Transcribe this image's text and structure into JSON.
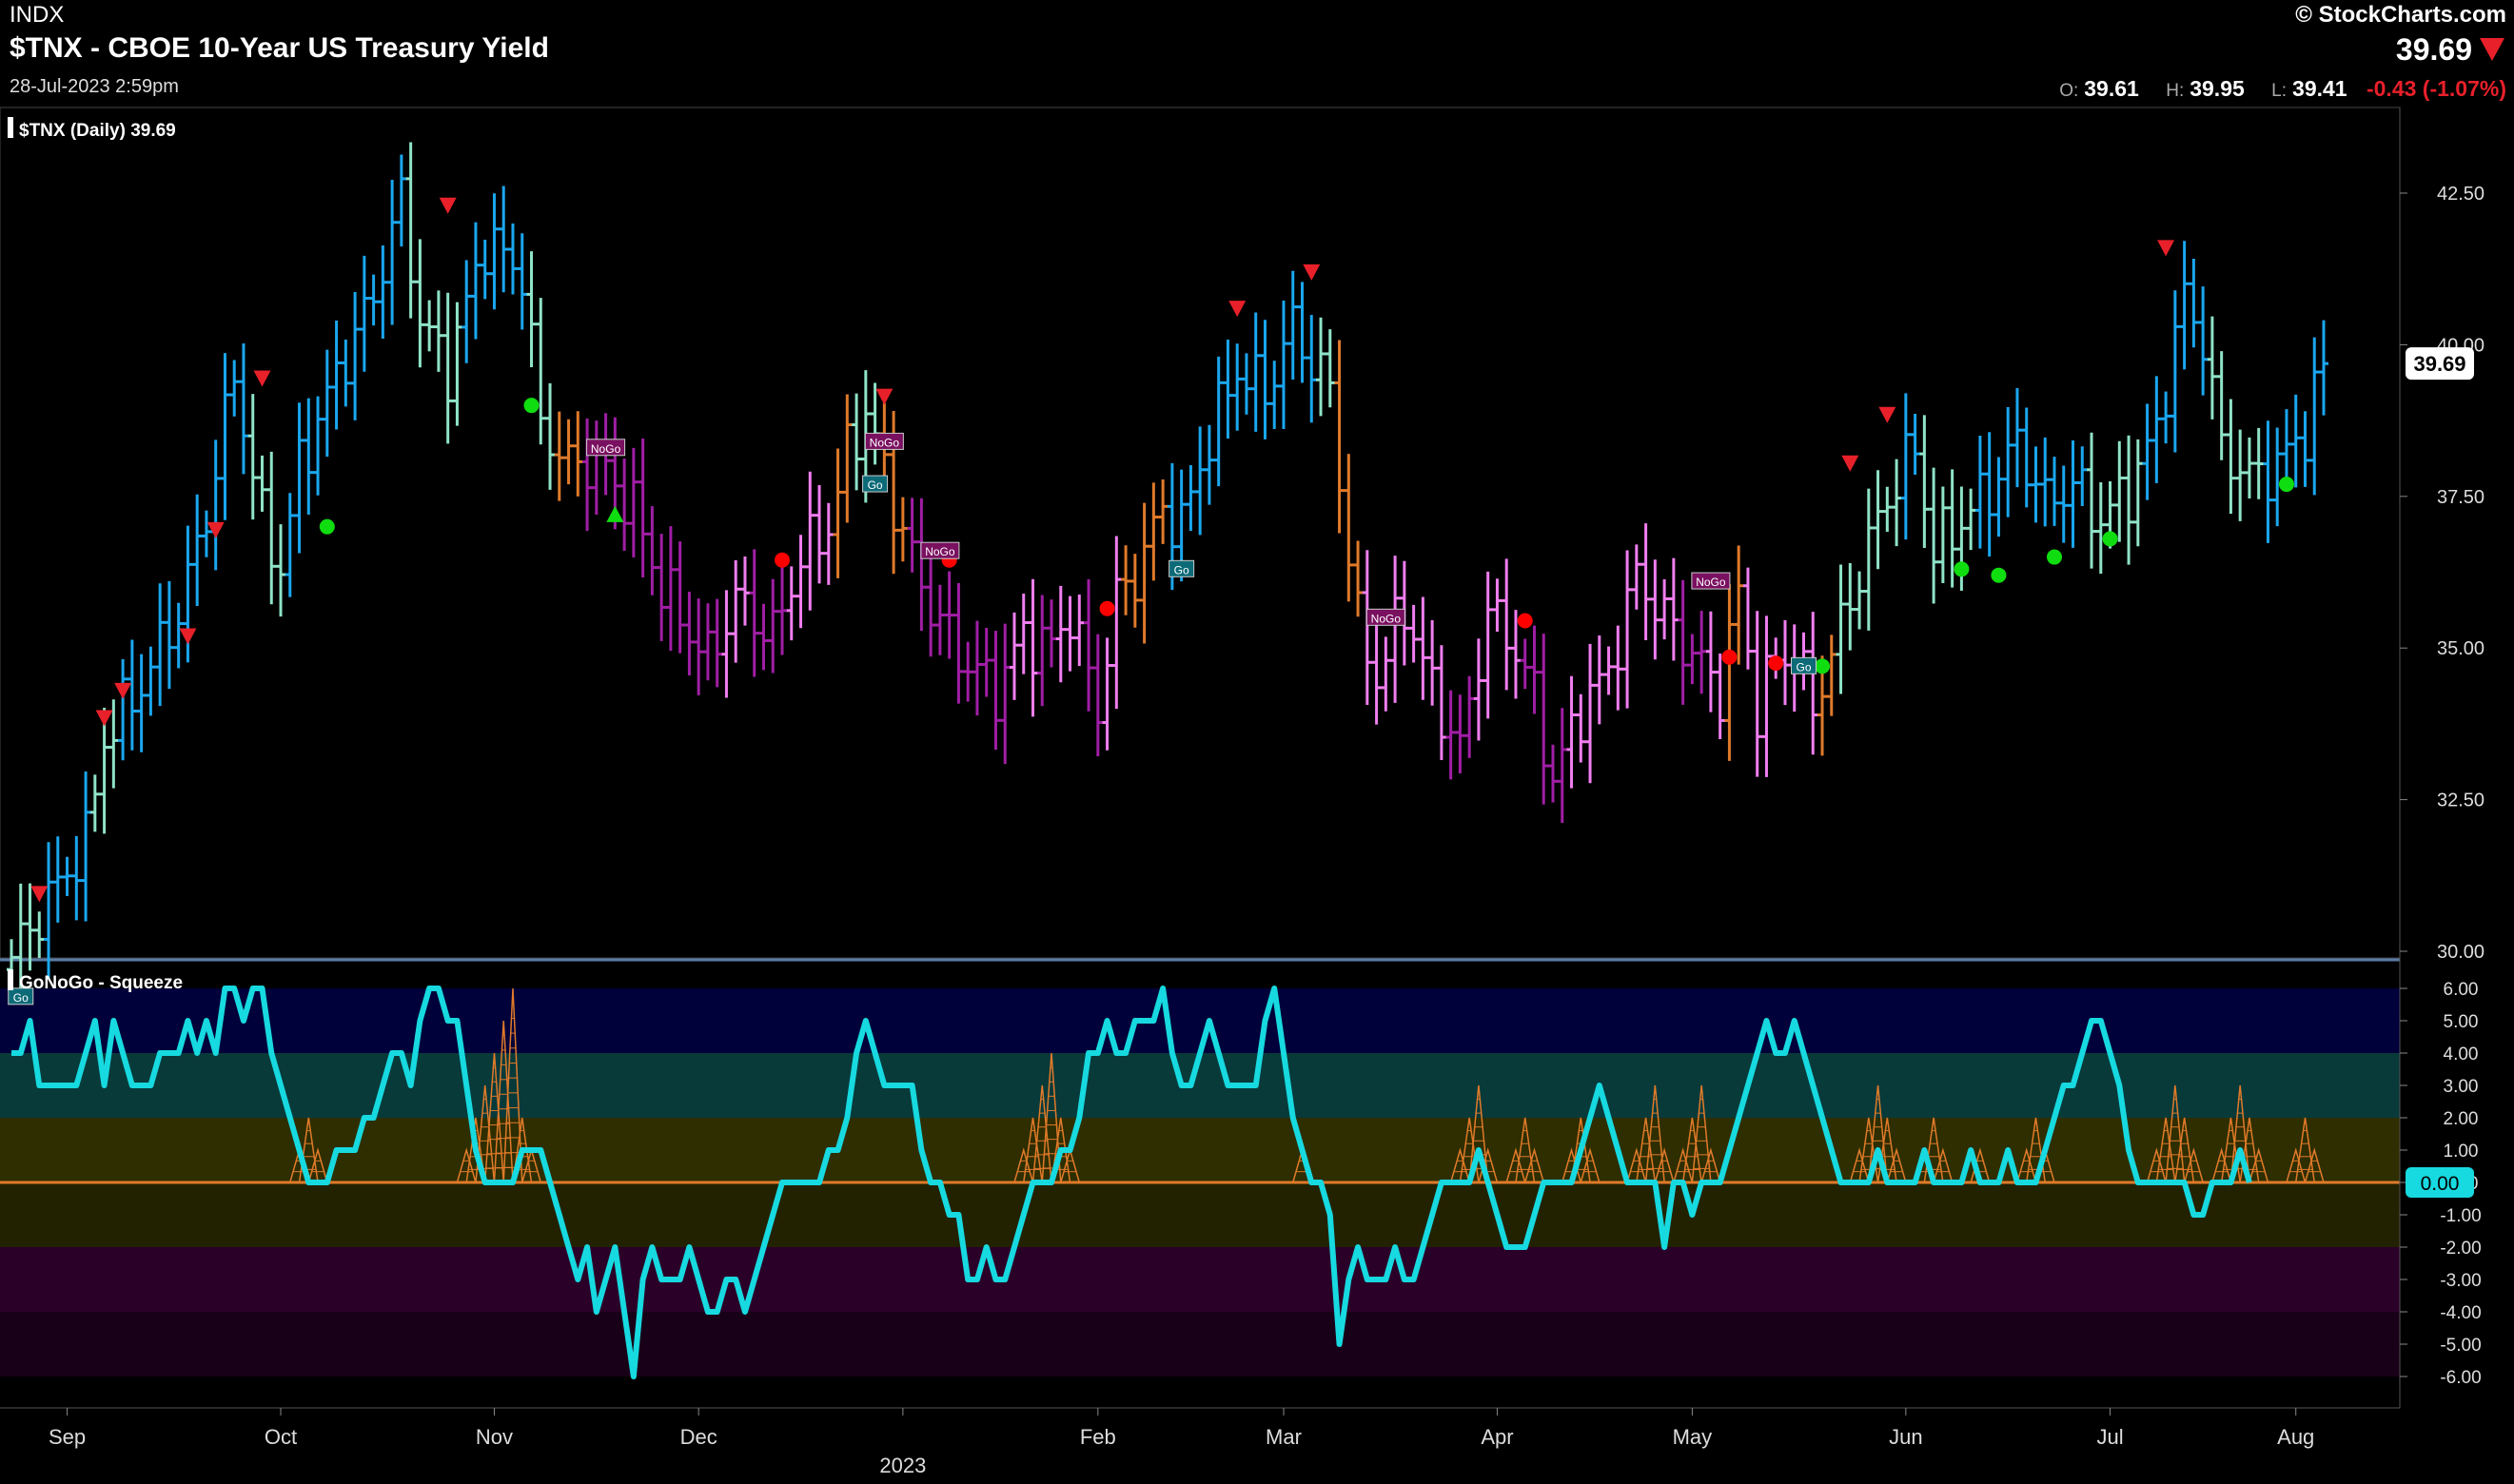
{
  "header": {
    "exchange": "INDX",
    "title": "$TNX - CBOE 10-Year US Treasury Yield",
    "date": "28-Jul-2023 2:59pm",
    "logo": "© StockCharts.com",
    "last": "39.69",
    "direction_icon": "down-triangle-icon",
    "open_label": "O:",
    "open": "39.61",
    "high_label": "H:",
    "high": "39.95",
    "low_label": "L:",
    "low": "39.41",
    "change": "-0.43 (-1.07%)"
  },
  "colors": {
    "strong_go": "#1aa7ef",
    "weak_go": "#8fe3c8",
    "weak_nogo": "#f07ef0",
    "strong_nogo": "#a01ea5",
    "amber": "#e07a2a",
    "oscillator": "#17d9e0",
    "squeeze": "#e07a2a",
    "down_arrow": "#e8202a",
    "nogo_dot": "#ff0000",
    "go_dot": "#10dd10"
  },
  "chart_data": [
    {
      "type": "ohlc",
      "title": "$TNX (Daily) 39.69",
      "ylim": [
        28.4,
        43.4
      ],
      "yticks": [
        42.5,
        40.0,
        37.5,
        35.0,
        32.5,
        30.0
      ],
      "ytick_labels": [
        "42.50",
        "40.00",
        "37.50",
        "35.00",
        "32.50",
        "30.00"
      ],
      "last_value": "39.69",
      "x_months": [
        "Sep",
        "Oct",
        "Nov",
        "Dec",
        "2023",
        "Feb",
        "Mar",
        "Apr",
        "May",
        "Jun",
        "Jul",
        "Aug"
      ],
      "anchors": [
        {
          "t": 0,
          "v": 29.9,
          "c": "weak_go"
        },
        {
          "t": 8,
          "v": 31.8,
          "c": "strong_go"
        },
        {
          "t": 10,
          "v": 33.5,
          "c": "weak_go"
        },
        {
          "t": 14,
          "v": 34.4,
          "c": "strong_go"
        },
        {
          "t": 18,
          "v": 35.6,
          "c": "strong_go"
        },
        {
          "t": 21,
          "v": 37.2,
          "c": "strong_go"
        },
        {
          "t": 24,
          "v": 39.5,
          "c": "strong_go"
        },
        {
          "t": 27,
          "v": 37.1,
          "c": "weak_go"
        },
        {
          "t": 29,
          "v": 36.3,
          "c": "weak_go"
        },
        {
          "t": 31,
          "v": 38.0,
          "c": "strong_go"
        },
        {
          "t": 35,
          "v": 39.5,
          "c": "strong_go"
        },
        {
          "t": 39,
          "v": 40.8,
          "c": "strong_go"
        },
        {
          "t": 42,
          "v": 42.4,
          "c": "strong_go"
        },
        {
          "t": 44,
          "v": 40.4,
          "c": "weak_go"
        },
        {
          "t": 47,
          "v": 39.6,
          "c": "weak_go"
        },
        {
          "t": 51,
          "v": 41.7,
          "c": "strong_go"
        },
        {
          "t": 55,
          "v": 41.2,
          "c": "strong_go"
        },
        {
          "t": 57,
          "v": 38.7,
          "c": "weak_go"
        },
        {
          "t": 60,
          "v": 38.0,
          "c": "amber"
        },
        {
          "t": 63,
          "v": 38.1,
          "c": "strong_nogo"
        },
        {
          "t": 67,
          "v": 37.3,
          "c": "strong_nogo"
        },
        {
          "t": 70,
          "v": 36.0,
          "c": "strong_nogo"
        },
        {
          "t": 75,
          "v": 34.8,
          "c": "strong_nogo"
        },
        {
          "t": 78,
          "v": 35.8,
          "c": "weak_nogo"
        },
        {
          "t": 82,
          "v": 35.2,
          "c": "strong_nogo"
        },
        {
          "t": 85,
          "v": 36.5,
          "c": "weak_nogo"
        },
        {
          "t": 88,
          "v": 37.0,
          "c": "weak_nogo"
        },
        {
          "t": 90,
          "v": 38.2,
          "c": "amber"
        },
        {
          "t": 92,
          "v": 38.9,
          "c": "weak_go"
        },
        {
          "t": 95,
          "v": 37.4,
          "c": "amber"
        },
        {
          "t": 98,
          "v": 36.0,
          "c": "strong_nogo"
        },
        {
          "t": 102,
          "v": 34.9,
          "c": "strong_nogo"
        },
        {
          "t": 106,
          "v": 34.3,
          "c": "strong_nogo"
        },
        {
          "t": 109,
          "v": 35.2,
          "c": "weak_nogo"
        },
        {
          "t": 112,
          "v": 35.0,
          "c": "strong_nogo"
        },
        {
          "t": 114,
          "v": 35.6,
          "c": "weak_nogo"
        },
        {
          "t": 117,
          "v": 34.0,
          "c": "strong_nogo"
        },
        {
          "t": 119,
          "v": 35.8,
          "c": "weak_nogo"
        },
        {
          "t": 121,
          "v": 36.2,
          "c": "amber"
        },
        {
          "t": 124,
          "v": 37.3,
          "c": "amber"
        },
        {
          "t": 126,
          "v": 37.0,
          "c": "strong_go"
        },
        {
          "t": 129,
          "v": 38.5,
          "c": "strong_go"
        },
        {
          "t": 132,
          "v": 39.6,
          "c": "strong_go"
        },
        {
          "t": 135,
          "v": 39.2,
          "c": "strong_go"
        },
        {
          "t": 138,
          "v": 40.3,
          "c": "strong_go"
        },
        {
          "t": 140,
          "v": 39.7,
          "c": "strong_go"
        },
        {
          "t": 142,
          "v": 39.3,
          "c": "weak_go"
        },
        {
          "t": 143,
          "v": 37.8,
          "c": "amber"
        },
        {
          "t": 145,
          "v": 35.4,
          "c": "amber"
        },
        {
          "t": 147,
          "v": 34.5,
          "c": "weak_nogo"
        },
        {
          "t": 150,
          "v": 35.7,
          "c": "weak_nogo"
        },
        {
          "t": 153,
          "v": 34.3,
          "c": "weak_nogo"
        },
        {
          "t": 156,
          "v": 33.3,
          "c": "strong_nogo"
        },
        {
          "t": 159,
          "v": 35.6,
          "c": "weak_nogo"
        },
        {
          "t": 162,
          "v": 35.0,
          "c": "weak_nogo"
        },
        {
          "t": 164,
          "v": 34.2,
          "c": "strong_nogo"
        },
        {
          "t": 166,
          "v": 32.8,
          "c": "strong_nogo"
        },
        {
          "t": 169,
          "v": 34.0,
          "c": "weak_nogo"
        },
        {
          "t": 172,
          "v": 34.6,
          "c": "weak_nogo"
        },
        {
          "t": 175,
          "v": 36.2,
          "c": "weak_nogo"
        },
        {
          "t": 178,
          "v": 35.5,
          "c": "weak_nogo"
        },
        {
          "t": 181,
          "v": 34.9,
          "c": "strong_nogo"
        },
        {
          "t": 184,
          "v": 34.3,
          "c": "weak_nogo"
        },
        {
          "t": 186,
          "v": 35.9,
          "c": "amber"
        },
        {
          "t": 188,
          "v": 34.0,
          "c": "weak_nogo"
        },
        {
          "t": 190,
          "v": 34.8,
          "c": "weak_nogo"
        },
        {
          "t": 192,
          "v": 34.9,
          "c": "weak_nogo"
        },
        {
          "t": 194,
          "v": 34.0,
          "c": "weak_nogo"
        },
        {
          "t": 196,
          "v": 34.9,
          "c": "amber"
        },
        {
          "t": 198,
          "v": 35.8,
          "c": "weak_go"
        },
        {
          "t": 200,
          "v": 36.7,
          "c": "weak_go"
        },
        {
          "t": 202,
          "v": 37.5,
          "c": "weak_go"
        },
        {
          "t": 205,
          "v": 38.3,
          "c": "strong_go"
        },
        {
          "t": 207,
          "v": 36.6,
          "c": "weak_go"
        },
        {
          "t": 210,
          "v": 37.1,
          "c": "weak_go"
        },
        {
          "t": 213,
          "v": 37.6,
          "c": "strong_go"
        },
        {
          "t": 216,
          "v": 38.4,
          "c": "strong_go"
        },
        {
          "t": 219,
          "v": 37.4,
          "c": "strong_go"
        },
        {
          "t": 222,
          "v": 37.7,
          "c": "strong_go"
        },
        {
          "t": 225,
          "v": 37.1,
          "c": "weak_go"
        },
        {
          "t": 228,
          "v": 37.6,
          "c": "weak_go"
        },
        {
          "t": 231,
          "v": 38.6,
          "c": "strong_go"
        },
        {
          "t": 234,
          "v": 40.8,
          "c": "strong_go"
        },
        {
          "t": 236,
          "v": 40.1,
          "c": "strong_go"
        },
        {
          "t": 238,
          "v": 38.3,
          "c": "weak_go"
        },
        {
          "t": 241,
          "v": 37.8,
          "c": "weak_go"
        },
        {
          "t": 244,
          "v": 38.0,
          "c": "strong_go"
        },
        {
          "t": 247,
          "v": 38.6,
          "c": "strong_go"
        },
        {
          "t": 249,
          "v": 39.69,
          "c": "strong_go"
        }
      ],
      "markers": [
        {
          "t": 3,
          "v": 30.95,
          "type": "down-triangle"
        },
        {
          "t": 10,
          "v": 33.85,
          "type": "down-triangle"
        },
        {
          "t": 12,
          "v": 34.3,
          "type": "down-triangle"
        },
        {
          "t": 19,
          "v": 35.2,
          "type": "down-triangle"
        },
        {
          "t": 22,
          "v": 36.95,
          "type": "down-triangle"
        },
        {
          "t": 27,
          "v": 39.45,
          "type": "down-triangle"
        },
        {
          "t": 47,
          "v": 42.3,
          "type": "down-triangle"
        },
        {
          "t": 94,
          "v": 39.15,
          "type": "down-triangle"
        },
        {
          "t": 132,
          "v": 40.6,
          "type": "down-triangle"
        },
        {
          "t": 140,
          "v": 41.2,
          "type": "down-triangle"
        },
        {
          "t": 198,
          "v": 38.05,
          "type": "down-triangle"
        },
        {
          "t": 202,
          "v": 38.85,
          "type": "down-triangle"
        },
        {
          "t": 232,
          "v": 41.6,
          "type": "down-triangle"
        },
        {
          "t": 65,
          "v": 37.2,
          "type": "up-triangle"
        },
        {
          "t": 34,
          "v": 37.0,
          "type": "go-dot"
        },
        {
          "t": 56,
          "v": 39.0,
          "type": "go-dot"
        },
        {
          "t": 195,
          "v": 34.7,
          "type": "go-dot"
        },
        {
          "t": 210,
          "v": 36.3,
          "type": "go-dot"
        },
        {
          "t": 214,
          "v": 36.2,
          "type": "go-dot"
        },
        {
          "t": 220,
          "v": 36.5,
          "type": "go-dot"
        },
        {
          "t": 226,
          "v": 36.8,
          "type": "go-dot"
        },
        {
          "t": 245,
          "v": 37.7,
          "type": "go-dot"
        },
        {
          "t": 83,
          "v": 36.45,
          "type": "nogo-dot"
        },
        {
          "t": 101,
          "v": 36.45,
          "type": "nogo-dot"
        },
        {
          "t": 118,
          "v": 35.65,
          "type": "nogo-dot"
        },
        {
          "t": 163,
          "v": 35.45,
          "type": "nogo-dot"
        },
        {
          "t": 185,
          "v": 34.85,
          "type": "nogo-dot"
        },
        {
          "t": 190,
          "v": 34.75,
          "type": "nogo-dot"
        }
      ],
      "labels": [
        {
          "t": 1,
          "v": 29.25,
          "text": "Go",
          "kind": "go"
        },
        {
          "t": 64,
          "v": 38.3,
          "text": "NoGo",
          "kind": "nogo"
        },
        {
          "t": 94,
          "v": 38.4,
          "text": "NoGo",
          "kind": "nogo"
        },
        {
          "t": 93,
          "v": 37.7,
          "text": "Go",
          "kind": "go"
        },
        {
          "t": 100,
          "v": 36.6,
          "text": "NoGo",
          "kind": "nogo"
        },
        {
          "t": 126,
          "v": 36.3,
          "text": "Go",
          "kind": "go"
        },
        {
          "t": 148,
          "v": 35.5,
          "text": "NoGo",
          "kind": "nogo"
        },
        {
          "t": 183,
          "v": 36.1,
          "text": "NoGo",
          "kind": "nogo"
        },
        {
          "t": 193,
          "v": 34.7,
          "text": "Go",
          "kind": "go"
        }
      ]
    },
    {
      "type": "line",
      "title": "GoNoGo - Squeeze",
      "ylim": [
        -6,
        6
      ],
      "yticks": [
        6,
        5,
        4,
        3,
        2,
        1,
        0,
        -1,
        -2,
        -3,
        -4,
        -5,
        -6
      ],
      "ytick_labels": [
        "6.00",
        "5.00",
        "4.00",
        "3.00",
        "2.00",
        "1.00",
        "0.00",
        "-1.00",
        "-2.00",
        "-3.00",
        "-4.00",
        "-5.00",
        "-6.00"
      ],
      "last_value": "0.00",
      "oscillator": [
        4,
        4,
        5,
        3,
        3,
        3,
        3,
        3,
        4,
        5,
        3,
        5,
        4,
        3,
        3,
        3,
        4,
        4,
        4,
        5,
        4,
        5,
        4,
        6,
        6,
        5,
        6,
        6,
        4,
        3,
        2,
        1,
        0,
        0,
        0,
        1,
        1,
        1,
        2,
        2,
        3,
        4,
        4,
        3,
        5,
        6,
        6,
        5,
        5,
        3,
        1,
        0,
        0,
        0,
        0,
        1,
        1,
        1,
        0,
        -1,
        -2,
        -3,
        -2,
        -4,
        -3,
        -2,
        -4,
        -6,
        -3,
        -2,
        -3,
        -3,
        -3,
        -2,
        -3,
        -4,
        -4,
        -3,
        -3,
        -4,
        -3,
        -2,
        -1,
        0,
        0,
        0,
        0,
        0,
        1,
        1,
        2,
        4,
        5,
        4,
        3,
        3,
        3,
        3,
        1,
        0,
        0,
        -1,
        -1,
        -3,
        -3,
        -2,
        -3,
        -3,
        -2,
        -1,
        0,
        0,
        0,
        1,
        1,
        2,
        4,
        4,
        5,
        4,
        4,
        5,
        5,
        5,
        6,
        4,
        3,
        3,
        4,
        5,
        4,
        3,
        3,
        3,
        3,
        5,
        6,
        4,
        2,
        1,
        0,
        0,
        -1,
        -5,
        -3,
        -2,
        -3,
        -3,
        -3,
        -2,
        -3,
        -3,
        -2,
        -1,
        0,
        0,
        0,
        0,
        1,
        0,
        -1,
        -2,
        -2,
        -2,
        -1,
        0,
        0,
        0,
        0,
        1,
        2,
        3,
        2,
        1,
        0,
        0,
        0,
        0,
        -2,
        0,
        0,
        -1,
        0,
        0,
        0,
        1,
        2,
        3,
        4,
        5,
        4,
        4,
        5,
        4,
        3,
        2,
        1,
        0,
        0,
        0,
        0,
        1,
        0,
        0,
        0,
        0,
        1,
        0,
        0,
        0,
        0,
        1,
        0,
        0,
        0,
        1,
        0,
        0,
        0,
        1,
        2,
        3,
        3,
        4,
        5,
        5,
        4,
        3,
        1,
        0,
        0,
        0,
        0,
        0,
        0,
        -1,
        -1,
        0,
        0,
        0,
        1,
        0
      ],
      "squeeze": [
        0,
        0,
        0,
        0,
        0,
        0,
        0,
        0,
        0,
        0,
        0,
        0,
        0,
        0,
        0,
        0,
        0,
        0,
        0,
        0,
        0,
        0,
        0,
        0,
        0,
        0,
        0,
        0,
        0,
        0,
        0,
        1,
        2,
        1,
        0,
        0,
        0,
        0,
        0,
        0,
        0,
        0,
        0,
        0,
        0,
        0,
        0,
        0,
        0,
        1,
        2,
        3,
        4,
        5,
        6,
        2,
        1,
        0,
        0,
        0,
        0,
        0,
        0,
        0,
        0,
        0,
        0,
        0,
        0,
        0,
        0,
        0,
        0,
        0,
        0,
        0,
        0,
        0,
        0,
        0,
        0,
        0,
        0,
        0,
        0,
        0,
        0,
        0,
        0,
        0,
        0,
        0,
        0,
        0,
        0,
        0,
        0,
        0,
        0,
        0,
        0,
        0,
        0,
        0,
        0,
        0,
        0,
        0,
        0,
        1,
        2,
        3,
        4,
        2,
        1,
        0,
        0,
        0,
        0,
        0,
        0,
        0,
        0,
        0,
        0,
        0,
        0,
        0,
        0,
        0,
        0,
        0,
        0,
        0,
        0,
        0,
        0,
        0,
        0,
        1,
        0,
        0,
        0,
        0,
        0,
        0,
        0,
        0,
        0,
        0,
        0,
        0,
        0,
        0,
        0,
        0,
        1,
        2,
        3,
        1,
        0,
        0,
        1,
        2,
        1,
        0,
        0,
        0,
        1,
        2,
        1,
        0,
        0,
        0,
        0,
        1,
        2,
        3,
        1,
        0,
        1,
        2,
        3,
        1,
        0,
        0,
        0,
        0,
        0,
        0,
        0,
        0,
        0,
        0,
        0,
        0,
        0,
        0,
        0,
        1,
        2,
        3,
        2,
        1,
        0,
        0,
        1,
        2,
        1,
        0,
        0,
        0,
        1,
        0,
        0,
        0,
        0,
        1,
        2,
        1,
        0,
        0,
        0,
        0,
        0,
        0,
        0,
        0,
        0,
        0,
        0,
        1,
        2,
        3,
        2,
        1,
        0,
        0,
        1,
        2,
        3,
        2,
        1,
        0,
        0,
        0,
        1,
        2,
        1,
        0
      ]
    }
  ]
}
